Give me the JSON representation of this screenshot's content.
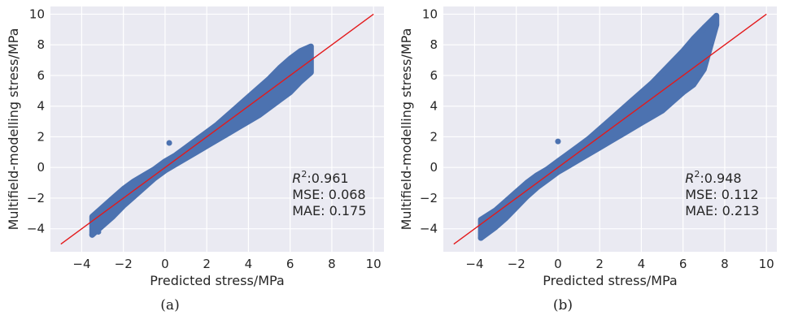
{
  "chart_data": [
    {
      "type": "scatter",
      "panel": "(a)",
      "xlabel": "Predicted stress/MPa",
      "ylabel": "Multifield-modelling stress/MPa",
      "xlim": [
        -5.5,
        10.5
      ],
      "ylim": [
        -5.5,
        10.5
      ],
      "xticks": [
        -4,
        -2,
        0,
        2,
        4,
        6,
        8,
        10
      ],
      "yticks": [
        -4,
        -2,
        0,
        2,
        4,
        6,
        8,
        10
      ],
      "grid": true,
      "point_color": "#4c72b0",
      "reference_line": {
        "color": "#e31a1c",
        "from": [
          -5,
          -5
        ],
        "to": [
          10,
          10
        ]
      },
      "stats": {
        "r2_label": "R",
        "r2_sup": "2",
        "r2_value": ":0.961",
        "mse": "MSE: 0.068",
        "mae": "MAE: 0.175"
      },
      "scatter_band": {
        "x": [
          -3.5,
          -3.0,
          -2.5,
          -2.0,
          -1.5,
          -1.0,
          -0.5,
          0.0,
          0.5,
          1.0,
          1.5,
          2.0,
          2.5,
          3.0,
          3.5,
          4.0,
          4.5,
          5.0,
          5.5,
          6.0,
          6.5,
          7.0
        ],
        "y_low": [
          -4.4,
          -3.8,
          -3.2,
          -2.5,
          -1.9,
          -1.3,
          -0.7,
          -0.2,
          0.2,
          0.6,
          1.0,
          1.4,
          1.8,
          2.2,
          2.6,
          3.0,
          3.4,
          3.9,
          4.4,
          4.9,
          5.6,
          6.2
        ],
        "y_high": [
          -3.2,
          -2.6,
          -2.0,
          -1.4,
          -0.9,
          -0.5,
          -0.1,
          0.4,
          0.8,
          1.3,
          1.8,
          2.3,
          2.8,
          3.4,
          4.0,
          4.6,
          5.2,
          5.8,
          6.5,
          7.1,
          7.6,
          7.9
        ]
      },
      "scatter_points": [
        {
          "x": 0.2,
          "y": 1.6
        },
        {
          "x": -3.5,
          "y": -4.4
        },
        {
          "x": -3.2,
          "y": -4.2
        }
      ]
    },
    {
      "type": "scatter",
      "panel": "(b)",
      "xlabel": "Predicted stress/MPa",
      "ylabel": "Multifield-modelling stress/MPa",
      "xlim": [
        -5.5,
        10.5
      ],
      "ylim": [
        -5.5,
        10.5
      ],
      "xticks": [
        -4,
        -2,
        0,
        2,
        4,
        6,
        8,
        10
      ],
      "yticks": [
        -4,
        -2,
        0,
        2,
        4,
        6,
        8,
        10
      ],
      "grid": true,
      "point_color": "#4c72b0",
      "reference_line": {
        "color": "#e31a1c",
        "from": [
          -5,
          -5
        ],
        "to": [
          10,
          10
        ]
      },
      "stats": {
        "r2_label": "R",
        "r2_sup": "2",
        "r2_value": ":0.948",
        "mse": "MSE: 0.112",
        "mae": "MAE: 0.213"
      },
      "scatter_band": {
        "x": [
          -3.7,
          -3.0,
          -2.5,
          -2.0,
          -1.5,
          -1.0,
          -0.5,
          0.0,
          0.5,
          1.0,
          1.5,
          2.0,
          2.5,
          3.0,
          3.5,
          4.0,
          4.5,
          5.0,
          5.5,
          6.0,
          6.5,
          7.0,
          7.6
        ],
        "y_low": [
          -4.6,
          -3.9,
          -3.3,
          -2.6,
          -1.9,
          -1.3,
          -0.8,
          -0.3,
          0.1,
          0.5,
          0.9,
          1.3,
          1.7,
          2.1,
          2.5,
          2.9,
          3.3,
          3.7,
          4.3,
          4.9,
          5.4,
          6.4,
          9.3
        ],
        "y_high": [
          -3.4,
          -2.8,
          -2.2,
          -1.6,
          -1.0,
          -0.5,
          -0.1,
          0.4,
          0.9,
          1.4,
          1.9,
          2.5,
          3.1,
          3.7,
          4.3,
          4.9,
          5.5,
          6.2,
          6.9,
          7.6,
          8.4,
          9.1,
          9.9
        ]
      },
      "scatter_points": [
        {
          "x": 0.0,
          "y": 1.7
        },
        {
          "x": -3.7,
          "y": -4.6
        },
        {
          "x": 6.6,
          "y": 5.7
        },
        {
          "x": 6.3,
          "y": 5.5
        }
      ]
    }
  ]
}
